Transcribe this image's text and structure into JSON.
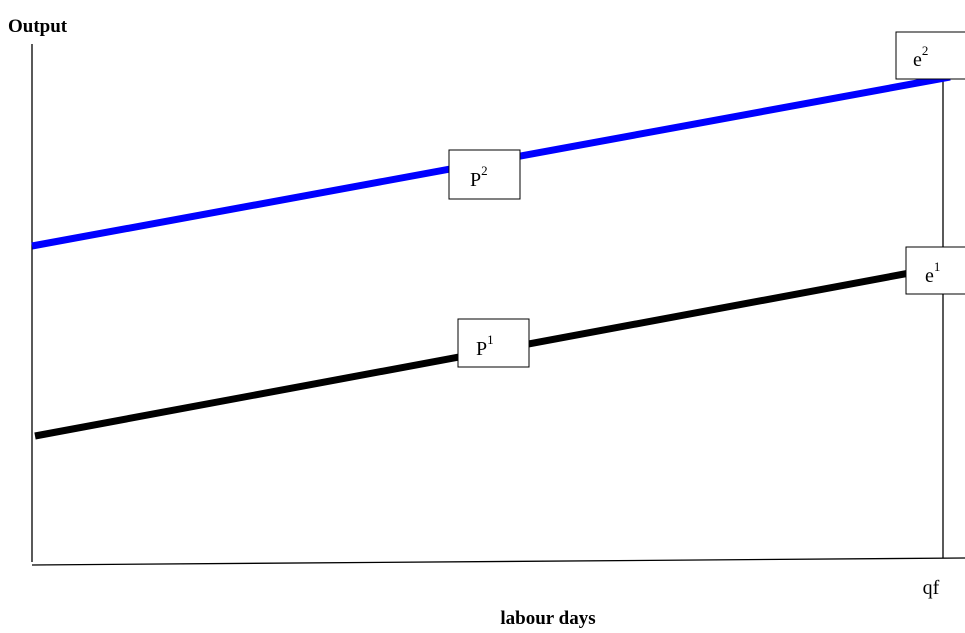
{
  "axes": {
    "y_label": "Output",
    "x_label": "labour days",
    "x_tick_label": "qf"
  },
  "curves": [
    {
      "id": "p2",
      "label": "P",
      "superscript": "2",
      "end_label": "e",
      "end_superscript": "2",
      "color": "#0000ff"
    },
    {
      "id": "p1",
      "label": "P",
      "superscript": "1",
      "end_label": "e",
      "end_superscript": "1",
      "color": "#000000"
    }
  ],
  "colors": {
    "axis": "#000000",
    "background": "#ffffff"
  }
}
